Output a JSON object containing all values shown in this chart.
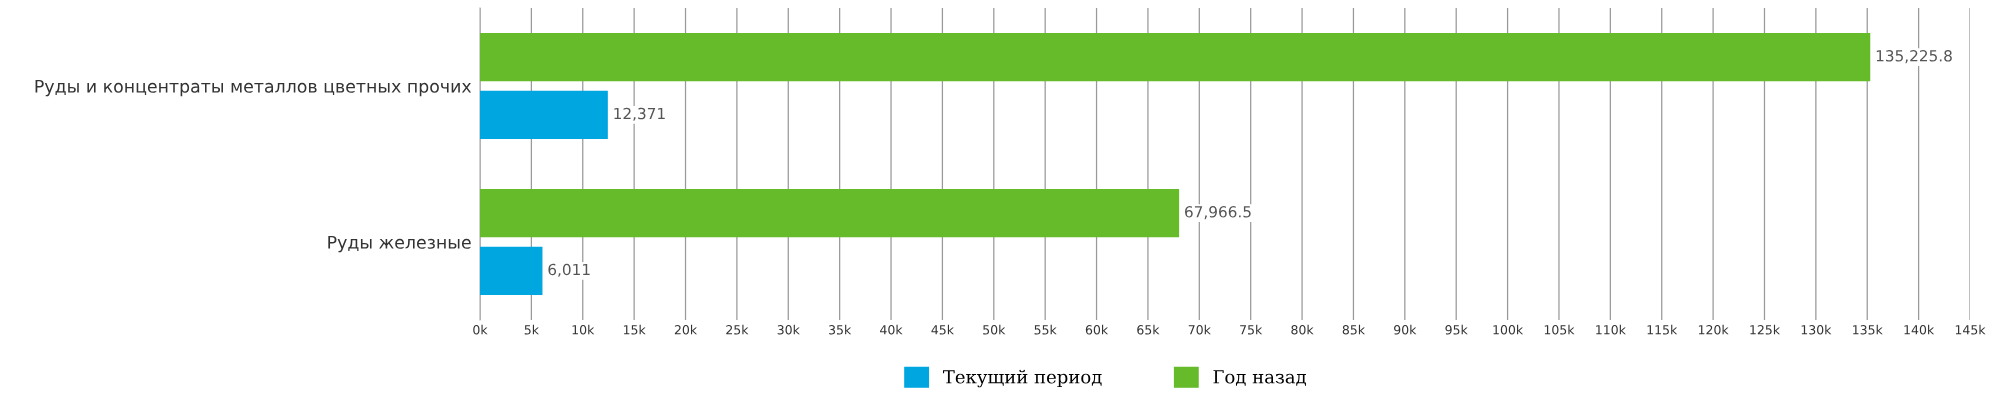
{
  "chart_data": {
    "type": "bar",
    "orientation": "horizontal",
    "categories": [
      "Руды и концентраты металлов цветных прочих",
      "Руды железные"
    ],
    "series": [
      {
        "name": "Текущий период",
        "color": "#00a6e0",
        "values": [
          12371,
          6011
        ],
        "value_labels": [
          "12,371",
          "6,011"
        ]
      },
      {
        "name": "Год назад",
        "color": "#66bb2a",
        "values": [
          135225.8,
          67966.5
        ],
        "value_labels": [
          "135,225.8",
          "67,966.5"
        ]
      }
    ],
    "xlim": [
      0,
      145000
    ],
    "xticks": [
      {
        "value": 0,
        "label": "0k"
      },
      {
        "value": 5000,
        "label": "5k"
      },
      {
        "value": 10000,
        "label": "10k"
      },
      {
        "value": 15000,
        "label": "15k"
      },
      {
        "value": 20000,
        "label": "20k"
      },
      {
        "value": 25000,
        "label": "25k"
      },
      {
        "value": 30000,
        "label": "30k"
      },
      {
        "value": 35000,
        "label": "35k"
      },
      {
        "value": 40000,
        "label": "40k"
      },
      {
        "value": 45000,
        "label": "45k"
      },
      {
        "value": 50000,
        "label": "50k"
      },
      {
        "value": 55000,
        "label": "55k"
      },
      {
        "value": 60000,
        "label": "60k"
      },
      {
        "value": 65000,
        "label": "65k"
      },
      {
        "value": 70000,
        "label": "70k"
      },
      {
        "value": 75000,
        "label": "75k"
      },
      {
        "value": 80000,
        "label": "80k"
      },
      {
        "value": 85000,
        "label": "85k"
      },
      {
        "value": 90000,
        "label": "90k"
      },
      {
        "value": 95000,
        "label": "95k"
      },
      {
        "value": 100000,
        "label": "100k"
      },
      {
        "value": 105000,
        "label": "105k"
      },
      {
        "value": 110000,
        "label": "110k"
      },
      {
        "value": 115000,
        "label": "115k"
      },
      {
        "value": 120000,
        "label": "120k"
      },
      {
        "value": 125000,
        "label": "125k"
      },
      {
        "value": 130000,
        "label": "130k"
      },
      {
        "value": 135000,
        "label": "135k"
      },
      {
        "value": 140000,
        "label": "140k"
      },
      {
        "value": 145000,
        "label": "145k"
      }
    ],
    "grid": "x",
    "legend": "bottom"
  }
}
